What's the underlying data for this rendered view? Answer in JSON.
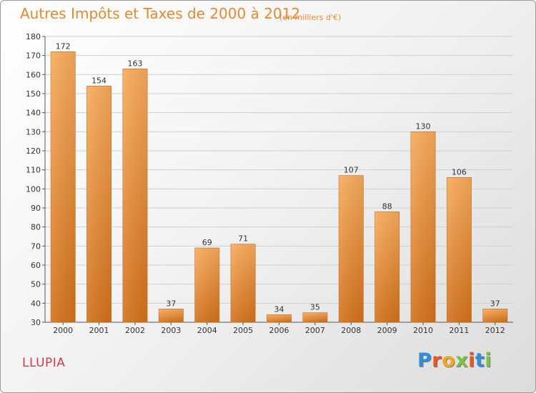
{
  "header": {
    "title": "Autres Impôts et Taxes de 2000 à 2012",
    "subtitle": "(en milliers d'€)"
  },
  "footer": {
    "town": "LLUPIA",
    "logo_letters": [
      "P",
      "r",
      "o",
      "x",
      "i",
      "t",
      "i"
    ],
    "logo_colors": [
      "#2f8fd8",
      "#e8571f",
      "#f2a81d",
      "#7cc242",
      "#e8571f",
      "#2f8fd8",
      "#7cc242"
    ]
  },
  "chart_data": {
    "type": "bar",
    "title": "Autres Impôts et Taxes de 2000 à 2012",
    "subtitle": "(en milliers d'€)",
    "categories": [
      "2000",
      "2001",
      "2002",
      "2003",
      "2004",
      "2005",
      "2006",
      "2007",
      "2008",
      "2009",
      "2010",
      "2011",
      "2012"
    ],
    "values": [
      172,
      154,
      163,
      37,
      69,
      71,
      34,
      35,
      107,
      88,
      130,
      106,
      37
    ],
    "ylim": [
      30,
      180
    ],
    "yticks": [
      30,
      40,
      50,
      60,
      70,
      80,
      90,
      100,
      110,
      120,
      130,
      140,
      150,
      160,
      170,
      180
    ],
    "grid": true,
    "bar_color_top": "#f7a95a",
    "bar_color_bottom": "#d4721c"
  }
}
